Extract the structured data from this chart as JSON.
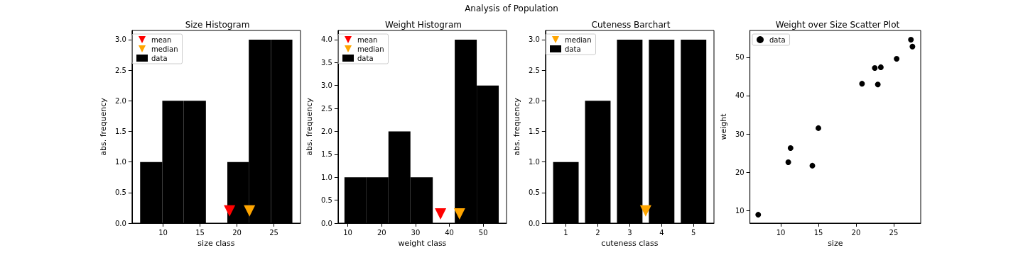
{
  "chart_data": [
    {
      "type": "histogram",
      "title": "Size Histogram",
      "xlabel": "size class",
      "ylabel": "abs. frequency",
      "annotations": [
        "Analysis of Population"
      ],
      "legend": "top left",
      "bins": [
        6.9,
        9.9,
        12.8,
        15.8,
        18.7,
        21.6,
        24.6,
        27.5
      ],
      "xlim": [
        5.8,
        28.6
      ],
      "xticks": [
        10,
        15,
        20,
        25
      ],
      "ylim": [
        0,
        3.15
      ],
      "yticks": [
        {
          "value": 0,
          "label": "0.0"
        },
        {
          "value": 0.5,
          "label": "0.5"
        },
        {
          "value": 1,
          "label": "1.0"
        },
        {
          "value": 1.5,
          "label": "1.5"
        },
        {
          "value": 2,
          "label": "2.0"
        },
        {
          "value": 2.5,
          "label": "2.5"
        },
        {
          "value": 3,
          "label": "3.0"
        }
      ],
      "series": [
        {
          "name": "mean",
          "type": "scatter",
          "marker": "triangle",
          "color": "#ff0000",
          "x": [
            19.0
          ],
          "values": [
            0.2
          ]
        },
        {
          "name": "median",
          "type": "scatter",
          "marker": "triangle",
          "color": "#ffa500",
          "x": [
            21.7
          ],
          "values": [
            0.2
          ]
        },
        {
          "name": "data",
          "color": "#000000",
          "values": [
            1,
            2,
            2,
            0,
            1,
            3,
            3
          ]
        }
      ]
    },
    {
      "type": "histogram",
      "title": "Weight Histogram",
      "xlabel": "weight class",
      "ylabel": "abs. frequency",
      "legend": "top left",
      "bins": [
        9.0,
        15.5,
        22.0,
        28.5,
        35.1,
        41.6,
        48.1,
        54.6
      ],
      "xlim": [
        7.1,
        56.9
      ],
      "xticks": [
        10,
        20,
        30,
        40,
        50
      ],
      "ylim": [
        0,
        4.2
      ],
      "yticks": [
        {
          "value": 0,
          "label": "0.0"
        },
        {
          "value": 0.5,
          "label": "0.5"
        },
        {
          "value": 1,
          "label": "1.0"
        },
        {
          "value": 1.5,
          "label": "1.5"
        },
        {
          "value": 2,
          "label": "2.0"
        },
        {
          "value": 2.5,
          "label": "2.5"
        },
        {
          "value": 3,
          "label": "3.0"
        },
        {
          "value": 3.5,
          "label": "3.5"
        },
        {
          "value": 4,
          "label": "4.0"
        }
      ],
      "series": [
        {
          "name": "mean",
          "type": "scatter",
          "marker": "triangle",
          "color": "#ff0000",
          "x": [
            37.4
          ],
          "values": [
            0.2
          ]
        },
        {
          "name": "median",
          "type": "scatter",
          "marker": "triangle",
          "color": "#ffa500",
          "x": [
            43.0
          ],
          "values": [
            0.2
          ]
        },
        {
          "name": "data",
          "color": "#000000",
          "values": [
            1,
            1,
            2,
            1,
            0,
            4,
            3
          ]
        }
      ]
    },
    {
      "type": "bar",
      "title": "Cuteness Barchart",
      "xlabel": "cuteness class",
      "ylabel": "abs. frequency",
      "legend": "top left",
      "xlim": [
        0.36,
        5.64
      ],
      "xticks": [
        1,
        2,
        3,
        4,
        5
      ],
      "ylim": [
        0,
        3.15
      ],
      "yticks": [
        {
          "value": 0,
          "label": "0.0"
        },
        {
          "value": 0.5,
          "label": "0.5"
        },
        {
          "value": 1,
          "label": "1.0"
        },
        {
          "value": 1.5,
          "label": "1.5"
        },
        {
          "value": 2,
          "label": "2.0"
        },
        {
          "value": 2.5,
          "label": "2.5"
        },
        {
          "value": 3,
          "label": "3.0"
        }
      ],
      "series": [
        {
          "name": "median",
          "type": "scatter",
          "marker": "triangle",
          "color": "#ffa500",
          "x": [
            3.5
          ],
          "values": [
            0.2
          ]
        },
        {
          "name": "data",
          "color": "#000000",
          "x": [
            1,
            2,
            3,
            4,
            5
          ],
          "values": [
            1,
            2,
            3,
            3,
            3
          ]
        }
      ]
    },
    {
      "type": "scatter",
      "title": "Weight over Size Scatter Plot",
      "xlabel": "size",
      "ylabel": "weight",
      "legend": "top left",
      "marker": "circle",
      "xlim": [
        5.9,
        28.6
      ],
      "xticks": [
        10,
        15,
        20,
        25
      ],
      "ylim": [
        6.7,
        57.0
      ],
      "yticks": [
        10,
        20,
        30,
        40,
        50
      ],
      "series": [
        {
          "name": "data",
          "color": "#000000",
          "x": [
            7.0,
            11.0,
            11.3,
            14.2,
            15.0,
            20.8,
            22.5,
            22.9,
            23.3,
            25.4,
            27.3,
            27.5
          ],
          "values": [
            8.9,
            22.6,
            26.3,
            21.7,
            31.5,
            43.1,
            47.2,
            42.9,
            47.4,
            49.6,
            54.6,
            52.8
          ]
        }
      ]
    }
  ]
}
